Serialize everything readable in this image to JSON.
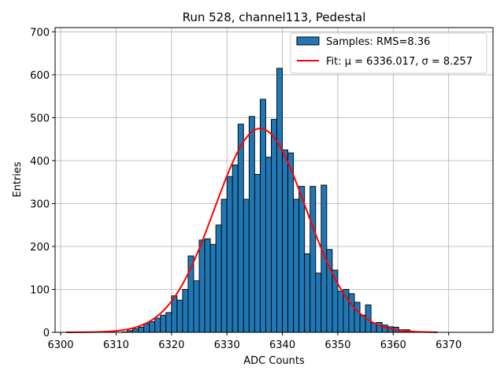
{
  "chart_data": {
    "type": "bar",
    "title": "Run 528, channel113, Pedestal",
    "xlabel": "ADC Counts",
    "ylabel": "Entries",
    "xlim": [
      6299,
      6378
    ],
    "ylim": [
      0,
      710
    ],
    "xticks": [
      6300,
      6310,
      6320,
      6330,
      6340,
      6350,
      6360,
      6370
    ],
    "yticks": [
      0,
      100,
      200,
      300,
      400,
      500,
      600,
      700
    ],
    "grid": true,
    "legend_position": "top-right",
    "bar_color": "#1f77b4",
    "fit_color": "#ff0000",
    "legend": {
      "samples_label": "Samples: RMS=8.36",
      "fit_label": "Fit: μ = 6336.017, σ = 8.257"
    },
    "bins": [
      6311,
      6312,
      6313,
      6314,
      6315,
      6316,
      6317,
      6318,
      6319,
      6320,
      6321,
      6322,
      6323,
      6324,
      6325,
      6326,
      6327,
      6328,
      6329,
      6330,
      6331,
      6332,
      6333,
      6334,
      6335,
      6336,
      6337,
      6338,
      6339,
      6340,
      6341,
      6342,
      6343,
      6344,
      6345,
      6346,
      6347,
      6348,
      6349,
      6350,
      6351,
      6352,
      6353,
      6354,
      6355,
      6356,
      6357,
      6358,
      6359,
      6360,
      6361,
      6362
    ],
    "values": [
      1,
      4,
      8,
      12,
      20,
      25,
      33,
      40,
      46,
      85,
      75,
      100,
      178,
      120,
      215,
      218,
      205,
      250,
      310,
      363,
      390,
      485,
      310,
      503,
      368,
      543,
      408,
      496,
      615,
      425,
      418,
      310,
      340,
      183,
      340,
      138,
      343,
      193,
      145,
      96,
      100,
      90,
      70,
      40,
      64,
      22,
      23,
      17,
      13,
      12,
      6,
      6
    ],
    "fit": {
      "mu": 6336.017,
      "sigma": 8.257,
      "amplitude": 475,
      "x_range": [
        6301,
        6368
      ]
    }
  }
}
